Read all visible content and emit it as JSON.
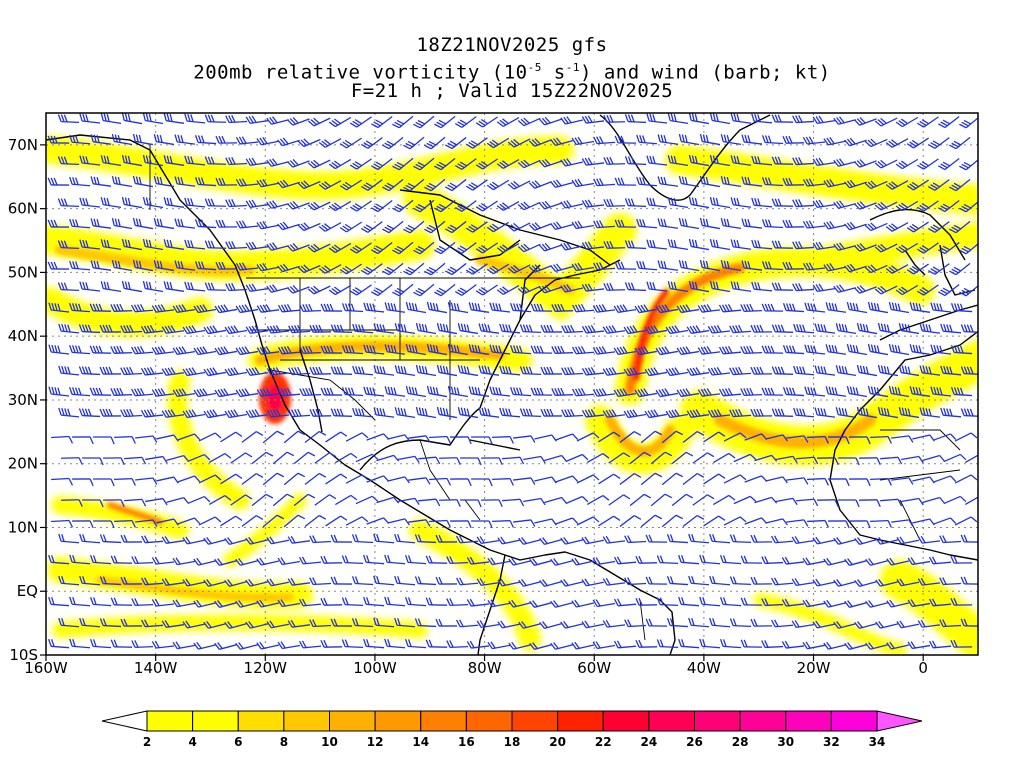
{
  "title": {
    "line1": "18Z21NOV2025 gfs",
    "line2_pre": "200mb relative vorticity (10",
    "line2_exp1": "-5",
    "line2_mid": " s",
    "line2_exp2": "-1",
    "line2_post": ") and wind (barb; kt)",
    "line3": "F=21 h ; Valid 15Z22NOV2025"
  },
  "axes": {
    "lon_ticks": [
      "160W",
      "140W",
      "120W",
      "100W",
      "80W",
      "60W",
      "40W",
      "20W",
      "0"
    ],
    "lat_ticks": [
      "70N",
      "60N",
      "50N",
      "40N",
      "30N",
      "20N",
      "10N",
      "EQ",
      "10S"
    ],
    "lon_range": [
      -160,
      10
    ],
    "lat_range": [
      -10,
      75
    ]
  },
  "colorbar": {
    "labels": [
      "2",
      "4",
      "6",
      "8",
      "10",
      "12",
      "14",
      "16",
      "18",
      "20",
      "22",
      "24",
      "26",
      "28",
      "30",
      "32",
      "34"
    ],
    "colors": [
      "#ffff00",
      "#ffff00",
      "#ffdd00",
      "#ffc800",
      "#ffb000",
      "#ff9900",
      "#ff8000",
      "#ff6600",
      "#ff4400",
      "#ff2200",
      "#ff0033",
      "#ff0055",
      "#ff0077",
      "#ff0099",
      "#ff00bb",
      "#ff00dd"
    ],
    "low_color": "#ffffff",
    "high_color": "#ff55ff"
  },
  "colors": {
    "barb": "#2233dd",
    "coast": "#000000",
    "grid": "#888888"
  }
}
